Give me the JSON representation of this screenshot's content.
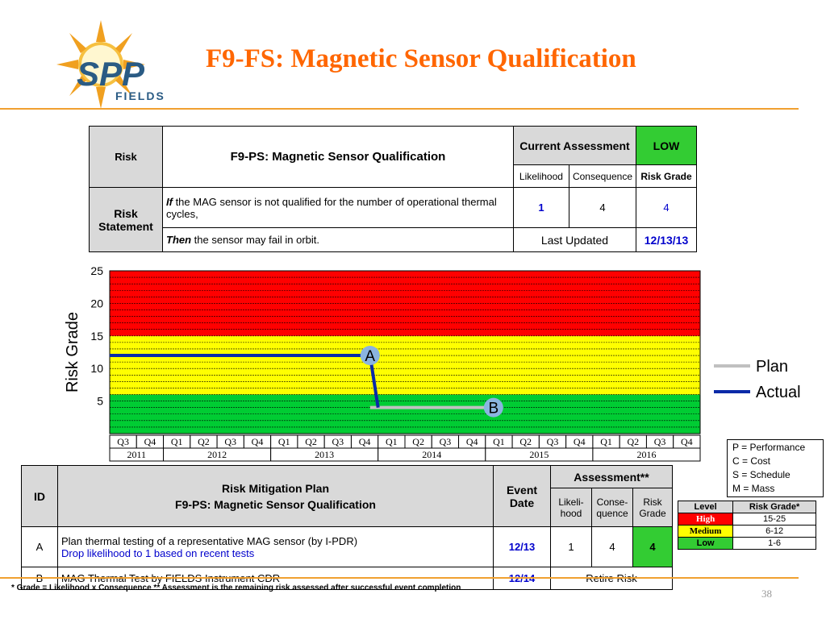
{
  "title": "F9-FS: Magnetic Sensor Qualification",
  "logo": {
    "text_main": "SPP",
    "text_sub": "FIELDS",
    "colors": {
      "sun": "#f0a020",
      "ink": "#2a5b84"
    }
  },
  "risk_table": {
    "risk_label": "Risk",
    "risk_title": "F9-PS: Magnetic Sensor Qualification",
    "current_assessment_label": "Current Assessment",
    "current_assessment_value": "LOW",
    "likelihood_label": "Likelihood",
    "consequence_label": "Consequence",
    "risk_grade_label": "Risk Grade",
    "risk_statement_label": "Risk Statement",
    "if_word": "If",
    "if_text": " the MAG sensor is not qualified for the number of operational thermal cycles,",
    "then_word": "Then",
    "then_text": " the sensor may fail in orbit.",
    "likelihood": "1",
    "consequence": "4",
    "risk_grade": "4",
    "last_updated_label": "Last Updated",
    "last_updated": "12/13/13"
  },
  "chart_data": {
    "type": "line",
    "ylabel": "Risk Grade",
    "ylim": [
      0,
      25
    ],
    "yticks": [
      "5",
      "10",
      "15",
      "20",
      "25"
    ],
    "quarters": [
      "Q3",
      "Q4",
      "Q1",
      "Q2",
      "Q3",
      "Q4",
      "Q1",
      "Q2",
      "Q3",
      "Q4",
      "Q1",
      "Q2",
      "Q3",
      "Q4",
      "Q1",
      "Q2",
      "Q3",
      "Q4",
      "Q1",
      "Q2",
      "Q3",
      "Q4"
    ],
    "years": [
      {
        "label": "2011",
        "quarters": 2
      },
      {
        "label": "2012",
        "quarters": 4
      },
      {
        "label": "2013",
        "quarters": 4
      },
      {
        "label": "2014",
        "quarters": 4
      },
      {
        "label": "2015",
        "quarters": 4
      },
      {
        "label": "2016",
        "quarters": 4
      }
    ],
    "bands": [
      {
        "from": 0,
        "to": 6,
        "color": "#00cc33"
      },
      {
        "from": 6,
        "to": 15,
        "color": "#ffff00"
      },
      {
        "from": 15,
        "to": 25,
        "color": "#ff0000"
      }
    ],
    "series": [
      {
        "name": "Plan",
        "color": "#c0c0c0",
        "points": [
          [
            9.7,
            4
          ],
          [
            14,
            4
          ]
        ]
      },
      {
        "name": "Actual",
        "color": "#0a2aa8",
        "points": [
          [
            0,
            12
          ],
          [
            9.7,
            12
          ],
          [
            10,
            4
          ]
        ]
      }
    ],
    "annotations": [
      {
        "label": "A",
        "x": 9.7,
        "y": 12
      },
      {
        "label": "B",
        "x": 14.3,
        "y": 4
      }
    ],
    "legend_position": "right"
  },
  "legend": [
    "P = Performance",
    "C = Cost",
    "S = Schedule",
    "M = Mass"
  ],
  "level_table": {
    "headers": [
      "Level",
      "Risk Grade*"
    ],
    "rows": [
      {
        "level": "High",
        "range": "15-25",
        "color": "#ff0000",
        "text": "#ffffff"
      },
      {
        "level": "Medium",
        "range": "6-12",
        "color": "#ffff00",
        "text": "#000000"
      },
      {
        "level": "Low",
        "range": "1-6",
        "color": "#33cc33",
        "text": "#000000"
      }
    ]
  },
  "mitigation": {
    "id_label": "ID",
    "plan_label_1": "Risk Mitigation Plan",
    "plan_label_2": "F9-PS:  Magnetic Sensor Qualification",
    "event_label": "Event Date",
    "assessment_label": "Assessment**",
    "likelihood_label": "Likeli-hood",
    "consequence_label": "Conse-quence",
    "grade_label": "Risk Grade",
    "rows": [
      {
        "id": "A",
        "plan": "Plan thermal testing of a representative MAG sensor (by I-PDR)",
        "note": "Drop likelihood to 1 based on recent tests",
        "date": "12/13",
        "likelihood": "1",
        "consequence": "4",
        "grade": "4"
      },
      {
        "id": "B",
        "plan": "MAG Thermal Test by FIELDS Instrument CDR",
        "date": "12/14",
        "retire": "Retire Risk"
      }
    ]
  },
  "footnote": "* Grade = Likelihood x Consequence    ** Assessment is the remaining risk assessed after successful event completion",
  "page_number": "38"
}
